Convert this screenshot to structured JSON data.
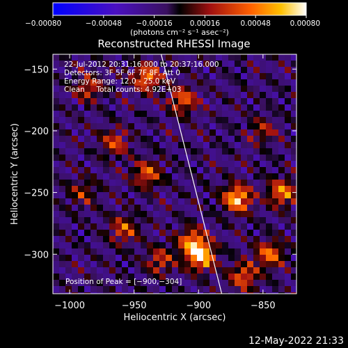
{
  "chart_data": {
    "type": "heatmap",
    "title": "Reconstructed RHESSI Image",
    "xlabel": "Heliocentric X (arcsec)",
    "ylabel": "Heliocentric Y (arcsec)",
    "xlim": [
      -1013,
      -824
    ],
    "ylim": [
      -332,
      -138
    ],
    "x_ticks": [
      {
        "value": -1000,
        "label": "−1000"
      },
      {
        "value": -950,
        "label": "−950"
      },
      {
        "value": -900,
        "label": "−900"
      },
      {
        "value": -850,
        "label": "−850"
      }
    ],
    "y_ticks": [
      {
        "value": -150,
        "label": "−150"
      },
      {
        "value": -200,
        "label": "−200"
      },
      {
        "value": -250,
        "label": "−250"
      },
      {
        "value": -300,
        "label": "−300"
      }
    ],
    "colorbar": {
      "range": [
        -0.0008,
        0.0008
      ],
      "ticks": [
        {
          "value": -0.0008,
          "label": "−0.00080"
        },
        {
          "value": -0.00048,
          "label": "−0.00048"
        },
        {
          "value": -0.00016,
          "label": "−0.00016"
        },
        {
          "value": 0.00016,
          "label": "0.00016"
        },
        {
          "value": 0.00048,
          "label": "0.00048"
        },
        {
          "value": 0.0008,
          "label": "0.00080"
        }
      ],
      "units_label": "(photons cm⁻² s⁻¹ asec⁻²)"
    },
    "annotations": [
      "22-Jul-2012 20:31:16.000 to 20:37:16.000",
      "Detectors: 3F 5F 6F 7F 8F, Att 0",
      "Energy Range: 12.0 - 25.0 keV",
      "Clean     Total counts: 4.92E+03"
    ],
    "peak_text": "Position of Peak = [−900,−304]",
    "peak": [
      -900,
      -304
    ],
    "limb_line": [
      [
        -929,
        -138
      ],
      [
        -882,
        -332
      ]
    ],
    "hot_spots": [
      {
        "x": -870,
        "y": -255,
        "value": 0.00078
      },
      {
        "x": -898,
        "y": -302,
        "value": 0.0008
      },
      {
        "x": -905,
        "y": -290,
        "value": 0.0006
      },
      {
        "x": -940,
        "y": -157,
        "value": 0.0006
      },
      {
        "x": -912,
        "y": -175,
        "value": 0.0005
      },
      {
        "x": -940,
        "y": -235,
        "value": 0.0005
      },
      {
        "x": -845,
        "y": -300,
        "value": 0.00055
      },
      {
        "x": -835,
        "y": -250,
        "value": 0.0006
      },
      {
        "x": -958,
        "y": -280,
        "value": 0.00045
      },
      {
        "x": -965,
        "y": -210,
        "value": 0.00042
      },
      {
        "x": -985,
        "y": -165,
        "value": 0.0004
      },
      {
        "x": -865,
        "y": -318,
        "value": 0.0005
      },
      {
        "x": -930,
        "y": -305,
        "value": 0.0004
      },
      {
        "x": -850,
        "y": -200,
        "value": 0.0003
      },
      {
        "x": -990,
        "y": -250,
        "value": 0.0003
      }
    ],
    "grid": false,
    "legend": "none"
  },
  "footer": {
    "date": "12-May-2022 21:33"
  }
}
